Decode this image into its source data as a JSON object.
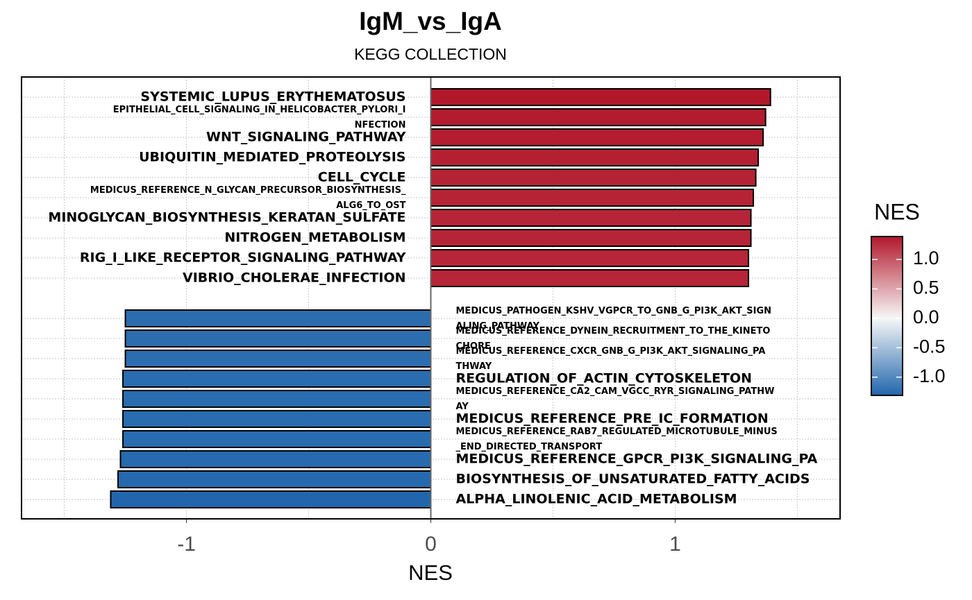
{
  "chart_data": {
    "type": "bar",
    "orientation": "horizontal",
    "title": "IgM_vs_IgA",
    "subtitle": "KEGG COLLECTION",
    "x_label": "NES",
    "categories": [
      "SYSTEMIC_LUPUS_ERYTHEMATOSUS",
      "EPITHELIAL_CELL_SIGNALING_IN_HELICOBACTER_PYLORI_INFECTION",
      "WNT_SIGNALING_PATHWAY",
      "UBIQUITIN_MEDIATED_PROTEOLYSIS",
      "CELL_CYCLE",
      "MEDICUS_REFERENCE_N_GLYCAN_PRECURSOR_BIOSYNTHESIS_ALG6_TO_OST",
      "MINOGLYCAN_BIOSYNTHESIS_KERATAN_SULFATE",
      "NITROGEN_METABOLISM",
      "RIG_I_LIKE_RECEPTOR_SIGNALING_PATHWAY",
      "VIBRIO_CHOLERAE_INFECTION",
      "MEDICUS_PATHOGEN_KSHV_VGPCR_TO_GNB_G_PI3K_AKT_SIGNALING_PATHWAY",
      "MEDICUS_REFERENCE_DYNEIN_RECRUITMENT_TO_THE_KINETOCHORE",
      "MEDICUS_REFERENCE_CXCR_GNB_G_PI3K_AKT_SIGNALING_PATHWAY",
      "REGULATION_OF_ACTIN_CYTOSKELETON",
      "MEDICUS_REFERENCE_CA2_CAM_VGCC_RYR_SIGNALING_PATHWAY",
      "MEDICUS_REFERENCE_PRE_IC_FORMATION",
      "MEDICUS_REFERENCE_RAB7_REGULATED_MICROTUBULE_MINUS_END_DIRECTED_TRANSPORT",
      "MEDICUS_REFERENCE_GPCR_PI3K_SIGNALING_PA",
      "BIOSYNTHESIS_OF_UNSATURATED_FATTY_ACIDS",
      "ALPHA_LINOLENIC_ACID_METABOLISM"
    ],
    "values": [
      1.39,
      1.37,
      1.36,
      1.34,
      1.33,
      1.32,
      1.31,
      1.31,
      1.3,
      1.3,
      -1.25,
      -1.25,
      -1.25,
      -1.26,
      -1.26,
      -1.26,
      -1.26,
      -1.27,
      -1.28,
      -1.31
    ],
    "xlim": [
      -1.675,
      1.675
    ],
    "xticks": [
      -1,
      0,
      1
    ],
    "x_minor_grid": [
      -1.5,
      -0.5,
      0.5,
      1.5
    ],
    "grid": true,
    "color_scale": {
      "low": "#2166ac",
      "mid": "#f7f7f7",
      "high": "#b2182b"
    },
    "legend": {
      "title": "NES",
      "lim": [
        -1.31,
        1.39
      ],
      "ticks": [
        {
          "value": 1,
          "label": "1.0"
        },
        0.5,
        {
          "value": 0,
          "label": "0.0"
        },
        -0.5,
        {
          "value": -1,
          "label": "-1.0"
        }
      ]
    }
  }
}
